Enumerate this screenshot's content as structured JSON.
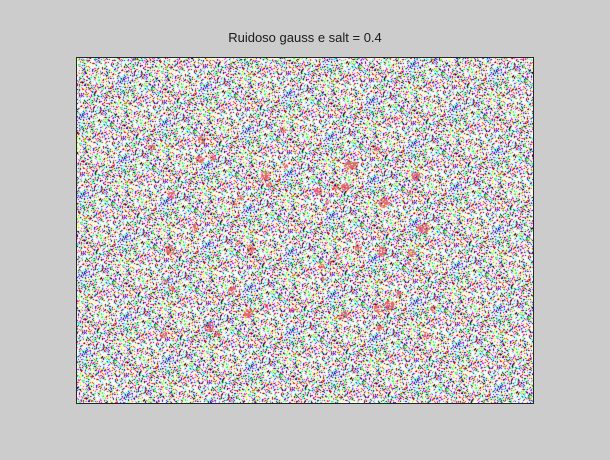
{
  "figure": {
    "background_color": "#cccccc"
  },
  "axes": {
    "title": "Ruidoso gauss e salt = 0.4",
    "frame_color": "#262626"
  },
  "image": {
    "description_type": "noisy-image",
    "noise_density": 0.4,
    "noise_palette": [
      "#ff00ff",
      "#00ffff",
      "#ffff00",
      "#ff0000",
      "#0000ff",
      "#00ff00",
      "#000000",
      "#ffffff"
    ],
    "blob_color": "#e05a64"
  }
}
